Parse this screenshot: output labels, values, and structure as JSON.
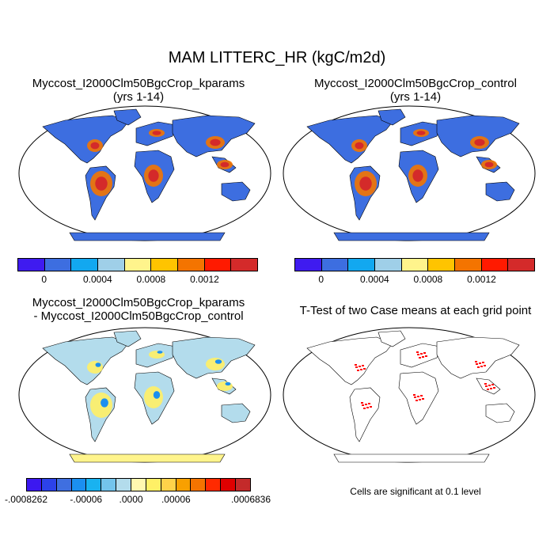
{
  "title": "MAM LITTERC_HR (kgC/m2d)",
  "panels": [
    {
      "id": "kparams",
      "title_line1": "Myccost_I2000Clm50BgcCrop_kparams",
      "title_line2": "(yrs 1-14)"
    },
    {
      "id": "control",
      "title_line1": "Myccost_I2000Clm50BgcCrop_control",
      "title_line2": "(yrs 1-14)"
    },
    {
      "id": "difference",
      "title_line1": "Myccost_I2000Clm50BgcCrop_kparams",
      "title_line2": "- Myccost_I2000Clm50BgcCrop_control"
    },
    {
      "id": "ttest",
      "title_line1": "T-Test of two Case means at each grid point",
      "title_line2": ""
    }
  ],
  "colorbar_top": {
    "colors": [
      "#3f1bf0",
      "#3d6ee0",
      "#12a8f0",
      "#9fcfe8",
      "#fff48c",
      "#ffc400",
      "#f47400",
      "#ff1a00",
      "#d42a2a"
    ],
    "ticks": [
      "0",
      "0.0004",
      "0.0008",
      "0.0012"
    ]
  },
  "colorbar_diff": {
    "colors": [
      "#3c18f0",
      "#2c42ea",
      "#3f6fe0",
      "#1b8ff0",
      "#19b2f0",
      "#73c4ec",
      "#b3dcec",
      "#fff8b0",
      "#fff066",
      "#ffd24a",
      "#f8a000",
      "#f47400",
      "#ff2a00",
      "#e00000",
      "#c42a2a"
    ],
    "ticks": [
      "-.0008262",
      "-.00006",
      ".0000",
      ".00006",
      ".0006836"
    ]
  },
  "significance_note": "Cells are significant at 0.1 level",
  "map_colors": {
    "ocean": "#ffffff",
    "low": "#3d6ee0",
    "mid": "#fff48c",
    "high": "#f47400",
    "peak": "#d42a2a",
    "diff_base": "#b3dcec",
    "diff_pos": "#fff066",
    "diff_neg": "#1b8ff0",
    "signif": "#ff0000",
    "coast": "#000000"
  }
}
